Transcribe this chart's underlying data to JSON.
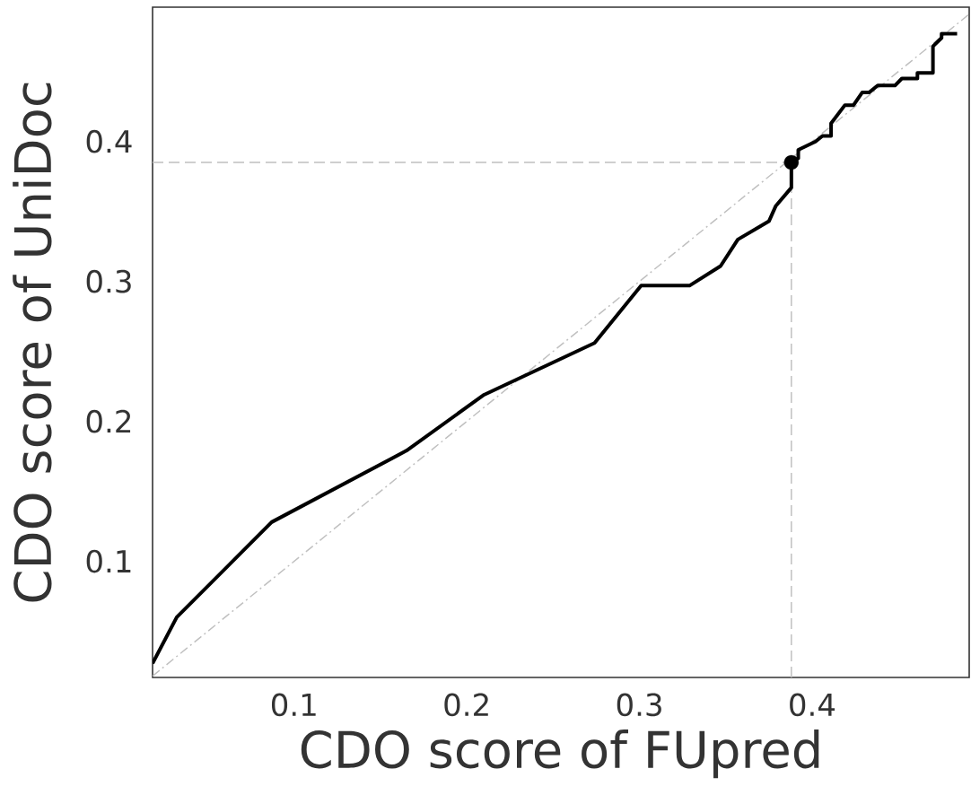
{
  "chart_data": {
    "type": "line",
    "xlabel": "CDO score of FUpred",
    "ylabel": "CDO score of UniDoc",
    "xlim": [
      0.018,
      0.491
    ],
    "ylim": [
      0.017,
      0.496
    ],
    "xticks": [
      0.1,
      0.2,
      0.3,
      0.4
    ],
    "yticks": [
      0.1,
      0.2,
      0.3,
      0.4
    ],
    "grid": false,
    "series": [
      {
        "color": "#c0c0c0",
        "line_style": "dashdot",
        "x": [
          0.018,
          0.491
        ],
        "values": [
          0.018,
          0.491
        ]
      },
      {
        "color": "#000000",
        "line_style": "solid",
        "x": [
          0.018,
          0.032,
          0.087,
          0.165,
          0.21,
          0.274,
          0.301,
          0.329,
          0.347,
          0.357,
          0.375,
          0.379,
          0.388,
          0.388,
          0.392,
          0.392,
          0.402,
          0.406,
          0.411,
          0.411,
          0.419,
          0.424,
          0.429,
          0.433,
          0.438,
          0.448,
          0.452,
          0.461,
          0.461,
          0.47,
          0.47,
          0.475,
          0.475,
          0.484
        ],
        "values": [
          0.027,
          0.06,
          0.128,
          0.179,
          0.219,
          0.256,
          0.297,
          0.297,
          0.311,
          0.33,
          0.343,
          0.354,
          0.367,
          0.385,
          0.388,
          0.394,
          0.4,
          0.404,
          0.404,
          0.413,
          0.426,
          0.426,
          0.435,
          0.435,
          0.44,
          0.44,
          0.445,
          0.445,
          0.449,
          0.449,
          0.468,
          0.474,
          0.477,
          0.477
        ]
      },
      {
        "type": "scatter",
        "color": "#000000",
        "marker": "circle",
        "x": [
          0.388
        ],
        "values": [
          0.385
        ]
      }
    ],
    "ref_lines": [
      {
        "axis": "x",
        "value": 0.388,
        "color": "#c0c0c0",
        "line_style": "dashed"
      },
      {
        "axis": "y",
        "value": 0.385,
        "color": "#c0c0c0",
        "line_style": "dashed"
      }
    ]
  }
}
